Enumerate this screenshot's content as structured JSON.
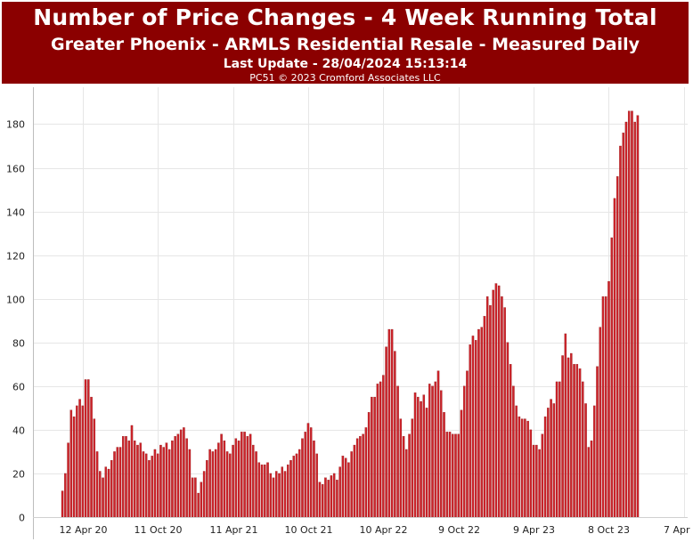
{
  "header": {
    "title": "Number of Price Changes - 4 Week Running Total",
    "subtitle": "Greater Phoenix - ARMLS Residential Resale - Measured Daily",
    "last_update": "Last Update - 28/04/2024 15:13:14",
    "credit": "PC51 © 2023 Cromford Associates LLC"
  },
  "colors": {
    "header_bg": "#8b0000",
    "bar_fill": "#cc2229",
    "bar_edge": "#8b1a1a",
    "grid": "#e6e6e6"
  },
  "chart_data": {
    "type": "bar",
    "title": "Number of Price Changes - 4 Week Running Total",
    "subtitle": "Greater Phoenix - ARMLS Residential Resale - Measured Daily",
    "ylim": [
      0,
      190
    ],
    "yticks": [
      0,
      20,
      40,
      60,
      80,
      100,
      120,
      140,
      160,
      180
    ],
    "grid": true,
    "x_tick_labels": [
      "12 Apr 20",
      "11 Oct 20",
      "11 Apr 21",
      "10 Oct 21",
      "10 Apr 22",
      "9 Oct 22",
      "9 Apr 23",
      "8 Oct 23",
      "7 Apr 24"
    ],
    "x_tick_positions": [
      7,
      33,
      59,
      85,
      111,
      137,
      163,
      189,
      215
    ],
    "first_x": "19 Jan 20",
    "last_x": "28 Apr 24",
    "values": [
      12,
      20,
      34,
      49,
      46,
      51,
      54,
      51,
      63,
      63,
      55,
      45,
      30,
      21,
      18,
      23,
      22,
      26,
      30,
      32,
      32,
      37,
      37,
      35,
      42,
      35,
      33,
      34,
      30,
      29,
      26,
      28,
      31,
      29,
      33,
      32,
      34,
      31,
      35,
      37,
      38,
      40,
      41,
      36,
      31,
      18,
      18,
      11,
      16,
      21,
      26,
      31,
      30,
      31,
      34,
      38,
      35,
      30,
      29,
      33,
      36,
      35,
      39,
      39,
      37,
      38,
      33,
      30,
      25,
      24,
      24,
      25,
      20,
      18,
      21,
      20,
      23,
      21,
      24,
      26,
      28,
      29,
      31,
      36,
      39,
      43,
      41,
      35,
      29,
      16,
      15,
      18,
      17,
      19,
      20,
      17,
      23,
      28,
      27,
      25,
      30,
      33,
      36,
      37,
      38,
      41,
      48,
      55,
      55,
      61,
      62,
      65,
      78,
      86,
      86,
      76,
      60,
      45,
      37,
      31,
      38,
      45,
      57,
      55,
      53,
      56,
      50,
      61,
      60,
      62,
      67,
      58,
      48,
      39,
      39,
      38,
      38,
      38,
      49,
      60,
      67,
      79,
      83,
      81,
      86,
      87,
      92,
      101,
      97,
      104,
      107,
      106,
      101,
      96,
      80,
      70,
      60,
      51,
      46,
      45,
      45,
      44,
      40,
      33,
      33,
      31,
      38,
      46,
      50,
      54,
      52,
      62,
      62,
      74,
      84,
      73,
      75,
      70,
      70,
      68,
      62,
      52,
      32,
      35,
      51,
      69,
      87,
      101,
      101,
      108,
      128,
      146,
      156,
      170,
      176,
      181,
      186,
      186,
      181,
      184
    ]
  }
}
